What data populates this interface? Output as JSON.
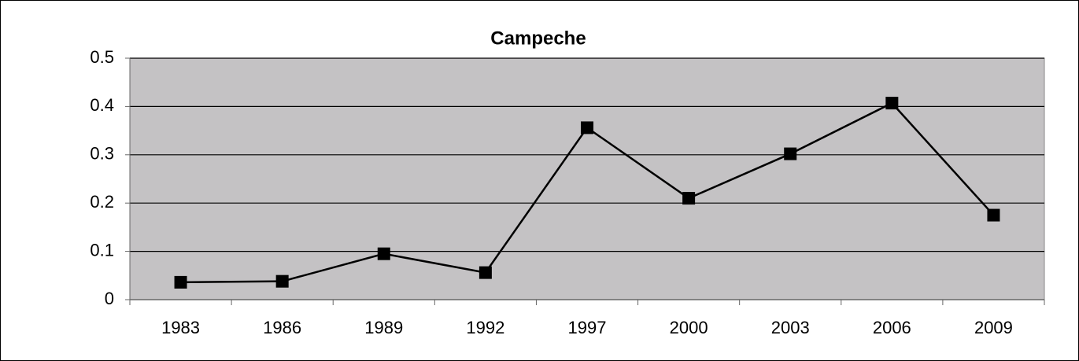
{
  "chart_data": {
    "type": "line",
    "title": "Campeche",
    "categories": [
      "1983",
      "1986",
      "1989",
      "1992",
      "1997",
      "2000",
      "2003",
      "2006",
      "2009"
    ],
    "series": [
      {
        "name": "Campeche",
        "color": "#000000",
        "values": [
          0.036,
          0.038,
          0.095,
          0.056,
          0.356,
          0.21,
          0.302,
          0.407,
          0.175
        ]
      }
    ],
    "ylim": [
      0,
      0.5
    ],
    "yticks": [
      0,
      0.1,
      0.2,
      0.3,
      0.4,
      0.5
    ],
    "grid": true
  }
}
